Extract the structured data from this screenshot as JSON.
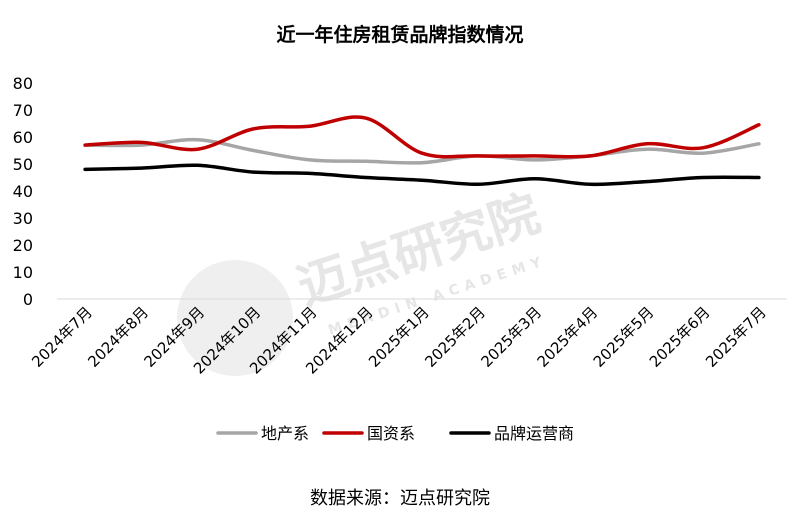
{
  "chart_data": {
    "type": "line",
    "title": "近一年住房租赁品牌指数情况",
    "categories": [
      "2024年7月",
      "2024年8月",
      "2024年9月",
      "2024年10月",
      "2024年11月",
      "2024年12月",
      "2025年1月",
      "2025年2月",
      "2025年3月",
      "2025年4月",
      "2025年5月",
      "2025年6月",
      "2025年7月"
    ],
    "ylim": [
      0,
      80
    ],
    "yticks": [
      0,
      10,
      20,
      30,
      40,
      50,
      60,
      70,
      80
    ],
    "grid": false,
    "legend_position": "bottom",
    "series": [
      {
        "name": "地产系",
        "color": "#a6a6a6",
        "values": [
          57,
          57,
          59,
          55,
          51.5,
          51,
          50.5,
          53,
          51.5,
          53,
          55.5,
          54,
          57.5
        ]
      },
      {
        "name": "国资系",
        "color": "#c00000",
        "values": [
          57,
          58,
          55.5,
          63,
          64,
          67,
          54,
          53,
          53,
          53,
          57.5,
          56,
          64.5
        ]
      },
      {
        "name": "品牌运营商",
        "color": "#000000",
        "values": [
          48,
          48.5,
          49.5,
          47,
          46.5,
          45,
          44,
          42.5,
          44.5,
          42.5,
          43.5,
          45,
          45
        ]
      }
    ]
  },
  "watermark": {
    "text": "迈点研究院",
    "subtext": "MEADIN ACADEMY"
  },
  "source_note": "数据来源：迈点研究院"
}
